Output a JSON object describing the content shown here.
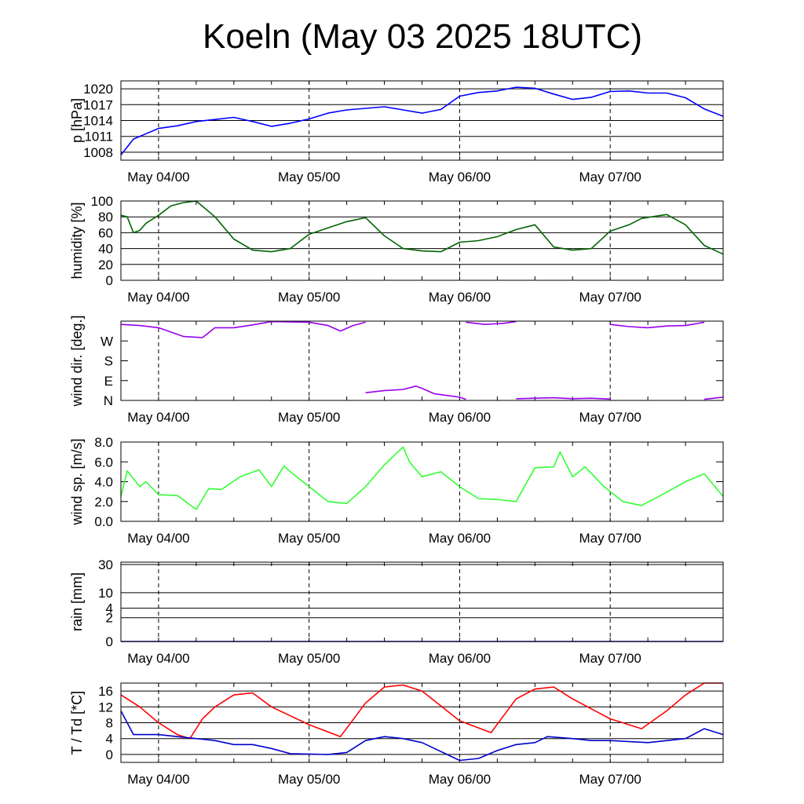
{
  "title": "Koeln (May 03 2025 18UTC)",
  "chart_data": {
    "type": "line",
    "x_axis": {
      "type": "time",
      "start": "2025-05-03 18:00",
      "end": "2025-05-07 18:00",
      "labels": [
        "May 04/00",
        "May 05/00",
        "May 06/00",
        "May 07/00"
      ],
      "label_times": [
        "2025-05-04 00:00",
        "2025-05-05 00:00",
        "2025-05-06 00:00",
        "2025-05-07 00:00"
      ]
    },
    "panels": [
      {
        "id": "pressure",
        "ylabel": "p [hPa]",
        "ylim": [
          1006.5,
          1021.5
        ],
        "yticks": [
          1008,
          1011,
          1014,
          1017,
          1020
        ],
        "ytick_labels": [
          "1008",
          "1011",
          "1014",
          "1017",
          "1020"
        ],
        "grid": "horizontal",
        "series": [
          {
            "color": "#0000ff",
            "x": [
              "2025-05-03 18:00",
              "2025-05-03 19:00",
              "2025-05-03 20:00",
              "2025-05-03 22:00",
              "2025-05-04 00:00",
              "2025-05-04 03:00",
              "2025-05-04 06:00",
              "2025-05-04 09:00",
              "2025-05-04 12:00",
              "2025-05-04 15:00",
              "2025-05-04 18:00",
              "2025-05-04 21:00",
              "2025-05-05 00:00",
              "2025-05-05 03:00",
              "2025-05-05 06:00",
              "2025-05-05 09:00",
              "2025-05-05 12:00",
              "2025-05-05 15:00",
              "2025-05-05 18:00",
              "2025-05-05 21:00",
              "2025-05-06 00:00",
              "2025-05-06 03:00",
              "2025-05-06 06:00",
              "2025-05-06 09:00",
              "2025-05-06 12:00",
              "2025-05-06 15:00",
              "2025-05-06 18:00",
              "2025-05-06 21:00",
              "2025-05-07 00:00",
              "2025-05-07 03:00",
              "2025-05-07 06:00",
              "2025-05-07 09:00",
              "2025-05-07 12:00",
              "2025-05-07 15:00",
              "2025-05-07 18:00"
            ],
            "y": [
              1007.5,
              1009.0,
              1010.5,
              1011.5,
              1012.5,
              1013.0,
              1013.8,
              1014.2,
              1014.6,
              1013.8,
              1012.9,
              1013.5,
              1014.3,
              1015.4,
              1016.0,
              1016.3,
              1016.6,
              1016.0,
              1015.4,
              1016.1,
              1018.6,
              1019.3,
              1019.6,
              1020.3,
              1020.1,
              1019.0,
              1018.0,
              1018.4,
              1019.5,
              1019.6,
              1019.2,
              1019.2,
              1018.3,
              1016.2,
              1014.8
            ]
          }
        ]
      },
      {
        "id": "humidity",
        "ylabel": "humidity [%]",
        "ylim": [
          0,
          100
        ],
        "yticks": [
          0,
          20,
          40,
          60,
          80,
          100
        ],
        "ytick_labels": [
          "0",
          "20",
          "40",
          "60",
          "80",
          "100"
        ],
        "grid": "horizontal",
        "series": [
          {
            "color": "#006400",
            "x": [
              "2025-05-03 18:00",
              "2025-05-03 19:00",
              "2025-05-03 20:00",
              "2025-05-03 21:00",
              "2025-05-03 22:00",
              "2025-05-04 00:00",
              "2025-05-04 02:00",
              "2025-05-04 04:00",
              "2025-05-04 06:00",
              "2025-05-04 09:00",
              "2025-05-04 12:00",
              "2025-05-04 15:00",
              "2025-05-04 18:00",
              "2025-05-04 21:00",
              "2025-05-05 00:00",
              "2025-05-05 03:00",
              "2025-05-05 06:00",
              "2025-05-05 09:00",
              "2025-05-05 12:00",
              "2025-05-05 15:00",
              "2025-05-05 18:00",
              "2025-05-05 21:00",
              "2025-05-06 00:00",
              "2025-05-06 03:00",
              "2025-05-06 06:00",
              "2025-05-06 09:00",
              "2025-05-06 12:00",
              "2025-05-06 15:00",
              "2025-05-06 18:00",
              "2025-05-06 21:00",
              "2025-05-07 00:00",
              "2025-05-07 03:00",
              "2025-05-07 05:00",
              "2025-05-07 09:00",
              "2025-05-07 12:00",
              "2025-05-07 15:00",
              "2025-05-07 18:00"
            ],
            "y": [
              82,
              80,
              60,
              63,
              72,
              82,
              94,
              98,
              100,
              80,
              52,
              38,
              36,
              40,
              58,
              66,
              74,
              79,
              56,
              40,
              37,
              36,
              48,
              50,
              55,
              64,
              70,
              42,
              38,
              40,
              62,
              70,
              78,
              83,
              70,
              44,
              33
            ]
          }
        ]
      },
      {
        "id": "wind_direction",
        "ylabel": "wind dir. [deg.]",
        "ylim": [
          0,
          360
        ],
        "yticks": [
          0,
          90,
          180,
          270,
          360
        ],
        "ytick_labels": [
          "N",
          "E",
          "S",
          "W",
          ""
        ],
        "grid": "none",
        "series": [
          {
            "color": "#9900ee",
            "x": [
              "2025-05-03 18:00",
              "2025-05-03 21:00",
              "2025-05-04 00:00",
              "2025-05-04 02:00",
              "2025-05-04 04:00",
              "2025-05-04 07:00",
              "2025-05-04 09:00",
              "2025-05-04 12:00",
              "2025-05-04 15:00",
              "2025-05-04 18:00",
              "2025-05-05 00:00",
              "2025-05-05 03:00",
              "2025-05-05 05:00",
              "2025-05-05 07:00",
              "2025-05-05 09:00"
            ],
            "y": [
              345,
              340,
              330,
              310,
              290,
              285,
              330,
              330,
              343,
              358,
              355,
              340,
              315,
              340,
              355
            ]
          },
          {
            "color": "#9900ee",
            "x": [
              "2025-05-05 09:00",
              "2025-05-05 12:00",
              "2025-05-05 15:00",
              "2025-05-05 17:00",
              "2025-05-05 18:00",
              "2025-05-05 20:00",
              "2025-05-06 00:00",
              "2025-05-06 01:00"
            ],
            "y": [
              35,
              45,
              50,
              65,
              55,
              30,
              15,
              5
            ]
          },
          {
            "color": "#9900ee",
            "x": [
              "2025-05-06 01:00",
              "2025-05-06 04:00",
              "2025-05-06 07:00",
              "2025-05-06 09:00"
            ],
            "y": [
              355,
              345,
              350,
              358
            ]
          },
          {
            "color": "#9900ee",
            "x": [
              "2025-05-06 09:00",
              "2025-05-06 12:00",
              "2025-05-06 15:00",
              "2025-05-06 18:00",
              "2025-05-06 21:00",
              "2025-05-07 00:00"
            ],
            "y": [
              8,
              10,
              12,
              8,
              10,
              6
            ]
          },
          {
            "color": "#9900ee",
            "x": [
              "2025-05-07 00:00",
              "2025-05-07 03:00",
              "2025-05-07 06:00",
              "2025-05-07 09:00",
              "2025-05-07 12:00",
              "2025-05-07 15:00"
            ],
            "y": [
              345,
              335,
              330,
              338,
              340,
              355
            ]
          },
          {
            "color": "#9900ee",
            "x": [
              "2025-05-07 15:00",
              "2025-05-07 18:00"
            ],
            "y": [
              5,
              15
            ]
          }
        ]
      },
      {
        "id": "wind_speed",
        "ylabel": "wind sp. [m/s]",
        "ylim": [
          0,
          8
        ],
        "yticks": [
          0,
          2,
          4,
          6,
          8
        ],
        "ytick_labels": [
          "0.0",
          "2.0",
          "4.0",
          "6.0",
          "8.0"
        ],
        "grid": "none",
        "series": [
          {
            "color": "#33ff33",
            "x": [
              "2025-05-03 18:00",
              "2025-05-03 19:00",
              "2025-05-03 21:00",
              "2025-05-03 22:00",
              "2025-05-04 00:00",
              "2025-05-04 03:00",
              "2025-05-04 06:00",
              "2025-05-04 08:00",
              "2025-05-04 10:00",
              "2025-05-04 13:00",
              "2025-05-04 16:00",
              "2025-05-04 18:00",
              "2025-05-04 20:00",
              "2025-05-04 21:00",
              "2025-05-05 00:00",
              "2025-05-05 03:00",
              "2025-05-05 06:00",
              "2025-05-05 09:00",
              "2025-05-05 12:00",
              "2025-05-05 15:00",
              "2025-05-05 16:00",
              "2025-05-05 18:00",
              "2025-05-05 21:00",
              "2025-05-06 00:00",
              "2025-05-06 03:00",
              "2025-05-06 06:00",
              "2025-05-06 09:00",
              "2025-05-06 12:00",
              "2025-05-06 15:00",
              "2025-05-06 16:00",
              "2025-05-06 18:00",
              "2025-05-06 20:00",
              "2025-05-06 23:00",
              "2025-05-07 02:00",
              "2025-05-07 05:00",
              "2025-05-07 08:00",
              "2025-05-07 12:00",
              "2025-05-07 15:00",
              "2025-05-07 18:00"
            ],
            "y": [
              2.5,
              5.1,
              3.5,
              4.0,
              2.7,
              2.6,
              1.2,
              3.3,
              3.2,
              4.5,
              5.2,
              3.5,
              5.6,
              5.0,
              3.5,
              2.0,
              1.8,
              3.5,
              5.7,
              7.5,
              6.0,
              4.5,
              5.0,
              3.5,
              2.3,
              2.2,
              2.0,
              5.4,
              5.5,
              7.0,
              4.5,
              5.5,
              3.5,
              2.0,
              1.6,
              2.6,
              4.0,
              4.8,
              2.5
            ]
          }
        ]
      },
      {
        "id": "rain",
        "ylabel": "rain [mm]",
        "ylim": [
          0,
          30
        ],
        "yticks": [
          0,
          2,
          4,
          10,
          30
        ],
        "ytick_labels": [
          "0",
          "2",
          "4",
          "10",
          "30"
        ],
        "scale": "nonlinear",
        "grid": "horizontal",
        "series": [
          {
            "color": "#0000aa",
            "x": [
              "2025-05-03 18:00",
              "2025-05-07 18:00"
            ],
            "y": [
              0,
              0
            ]
          }
        ]
      },
      {
        "id": "temperature_dewpoint",
        "ylabel": "T / Td [*C]",
        "ylim": [
          -2,
          18
        ],
        "yticks": [
          0,
          4,
          8,
          12,
          16
        ],
        "ytick_labels": [
          "0",
          "4",
          "8",
          "12",
          "16"
        ],
        "grid": "horizontal",
        "series": [
          {
            "color": "#ff0000",
            "x": [
              "2025-05-03 18:00",
              "2025-05-03 21:00",
              "2025-05-04 00:00",
              "2025-05-04 03:00",
              "2025-05-04 05:00",
              "2025-05-04 07:00",
              "2025-05-04 09:00",
              "2025-05-04 12:00",
              "2025-05-04 15:00",
              "2025-05-04 18:00",
              "2025-05-05 00:00",
              "2025-05-05 05:00",
              "2025-05-05 09:00",
              "2025-05-05 12:00",
              "2025-05-05 15:00",
              "2025-05-05 18:00",
              "2025-05-06 00:00",
              "2025-05-06 05:00",
              "2025-05-06 09:00",
              "2025-05-06 12:00",
              "2025-05-06 15:00",
              "2025-05-06 18:00",
              "2025-05-07 00:00",
              "2025-05-07 05:00",
              "2025-05-07 09:00",
              "2025-05-07 12:00",
              "2025-05-07 15:00",
              "2025-05-07 18:00"
            ],
            "y": [
              15,
              12,
              8,
              5,
              4,
              9,
              12,
              15,
              15.5,
              12,
              7.5,
              4.5,
              13,
              17,
              17.5,
              16,
              8.5,
              5.5,
              14,
              16.5,
              17,
              14,
              9,
              6.5,
              11,
              15,
              18,
              18
            ]
          },
          {
            "color": "#0000cc",
            "x": [
              "2025-05-03 18:00",
              "2025-05-03 20:00",
              "2025-05-03 21:00",
              "2025-05-04 00:00",
              "2025-05-04 03:00",
              "2025-05-04 06:00",
              "2025-05-04 09:00",
              "2025-05-04 12:00",
              "2025-05-04 15:00",
              "2025-05-04 18:00",
              "2025-05-04 21:00",
              "2025-05-05 03:00",
              "2025-05-05 06:00",
              "2025-05-05 09:00",
              "2025-05-05 12:00",
              "2025-05-05 15:00",
              "2025-05-05 18:00",
              "2025-05-06 00:00",
              "2025-05-06 03:00",
              "2025-05-06 06:00",
              "2025-05-06 09:00",
              "2025-05-06 12:00",
              "2025-05-06 14:00",
              "2025-05-06 18:00",
              "2025-05-06 21:00",
              "2025-05-07 00:00",
              "2025-05-07 06:00",
              "2025-05-07 12:00",
              "2025-05-07 15:00",
              "2025-05-07 18:00"
            ],
            "y": [
              11,
              5,
              5,
              5,
              4.5,
              4,
              3.5,
              2.5,
              2.5,
              1.5,
              0.2,
              0,
              0.5,
              3.5,
              4.5,
              4,
              3,
              -1.5,
              -1,
              1,
              2.5,
              3,
              4.5,
              4,
              3.5,
              3.5,
              3,
              4,
              6.5,
              5
            ]
          }
        ]
      }
    ]
  }
}
